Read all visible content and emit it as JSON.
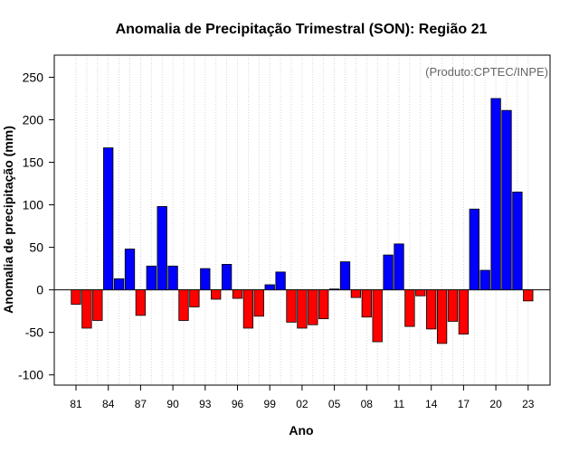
{
  "chart_data": {
    "type": "bar",
    "title": "Anomalia de Precipitação Trimestral (SON): Região 21",
    "xlabel": "Ano",
    "ylabel": "Anomalia de precipitação (mm)",
    "credit": "(Produto:CPTEC/INPE)",
    "ylim": [
      -112,
      276
    ],
    "yticks": [
      -100,
      -50,
      0,
      50,
      100,
      150,
      200,
      250
    ],
    "xtick_labels": [
      "81",
      "84",
      "87",
      "90",
      "93",
      "96",
      "99",
      "02",
      "05",
      "08",
      "11",
      "14",
      "17",
      "20",
      "23"
    ],
    "categories": [
      1981,
      1982,
      1983,
      1984,
      1985,
      1986,
      1987,
      1988,
      1989,
      1990,
      1991,
      1992,
      1993,
      1994,
      1995,
      1996,
      1997,
      1998,
      1999,
      2000,
      2001,
      2002,
      2003,
      2004,
      2005,
      2006,
      2007,
      2008,
      2009,
      2010,
      2011,
      2012,
      2013,
      2014,
      2015,
      2016,
      2017,
      2018,
      2019,
      2020,
      2021,
      2022,
      2023
    ],
    "values": [
      -17,
      -45,
      -36,
      167,
      13,
      48,
      -30,
      28,
      98,
      28,
      -36,
      -20,
      25,
      -11,
      30,
      -10,
      -45,
      -31,
      6,
      21,
      -38,
      -45,
      -41,
      -34,
      1,
      33,
      -9,
      -32,
      -61,
      41,
      54,
      -43,
      -7,
      -46,
      -63,
      -37,
      -52,
      95,
      23,
      225,
      211,
      115,
      -13
    ],
    "colors": {
      "positive": "#0000ff",
      "negative": "#ff0000"
    },
    "grid": "vertical-dotted"
  }
}
